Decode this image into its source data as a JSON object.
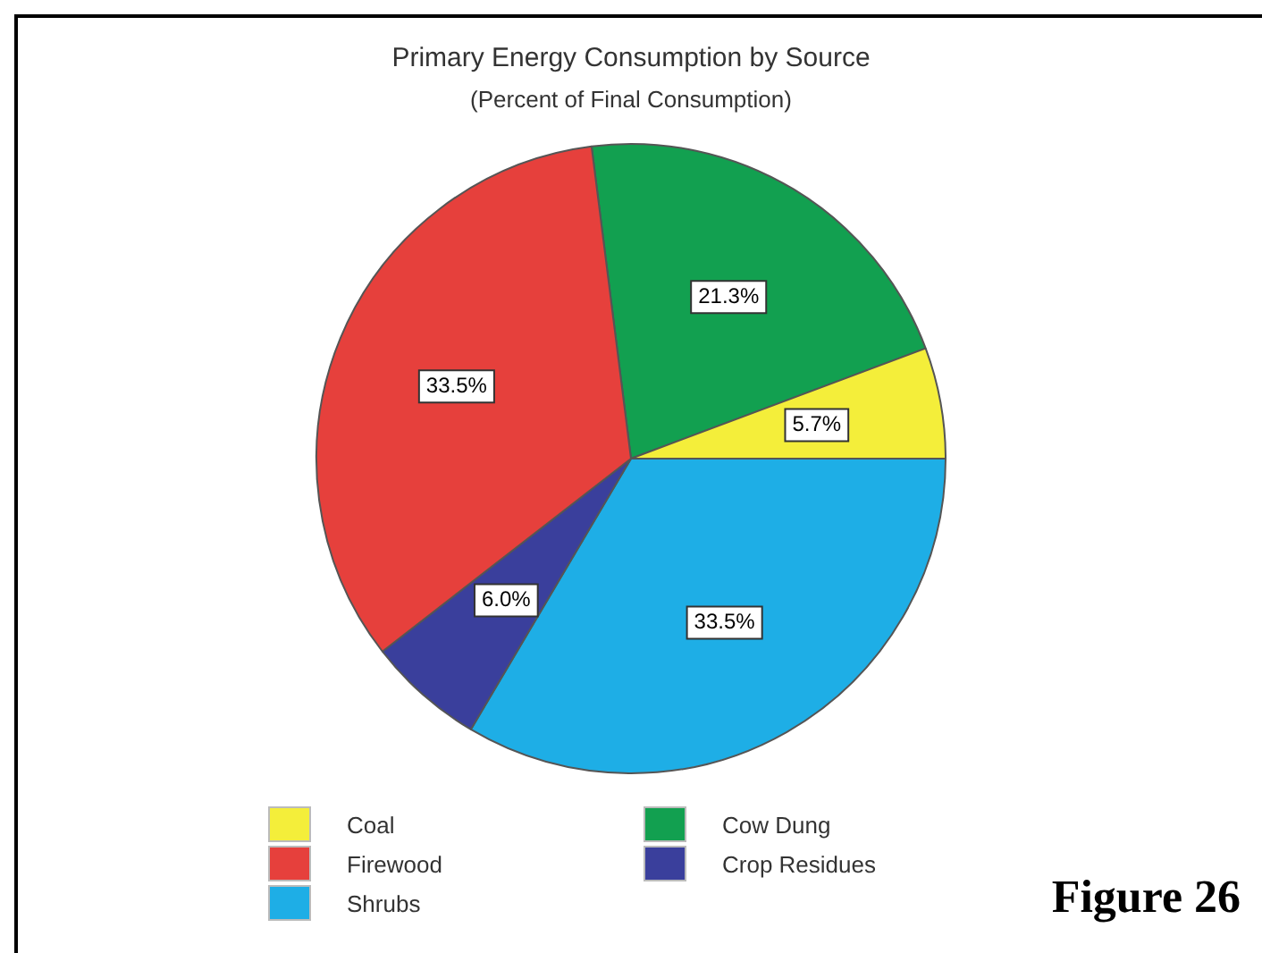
{
  "chart_data": {
    "type": "pie",
    "title": "Primary Energy Consumption by Source",
    "subtitle": "(Percent of Final Consumption)",
    "categories": [
      "Cow Dung",
      "Coal",
      "Shrubs",
      "Crop Residues",
      "Firewood"
    ],
    "values": [
      21.3,
      5.7,
      33.5,
      6.0,
      33.5
    ],
    "colors": [
      "#12a050",
      "#f4ee3a",
      "#1eaee6",
      "#3a3f9c",
      "#e6403c"
    ],
    "value_labels": [
      "21.3%",
      "5.7%",
      "33.5%",
      "6.0%",
      "33.5%"
    ],
    "legend": "bottom",
    "annotations": [
      "Figure 26"
    ]
  }
}
